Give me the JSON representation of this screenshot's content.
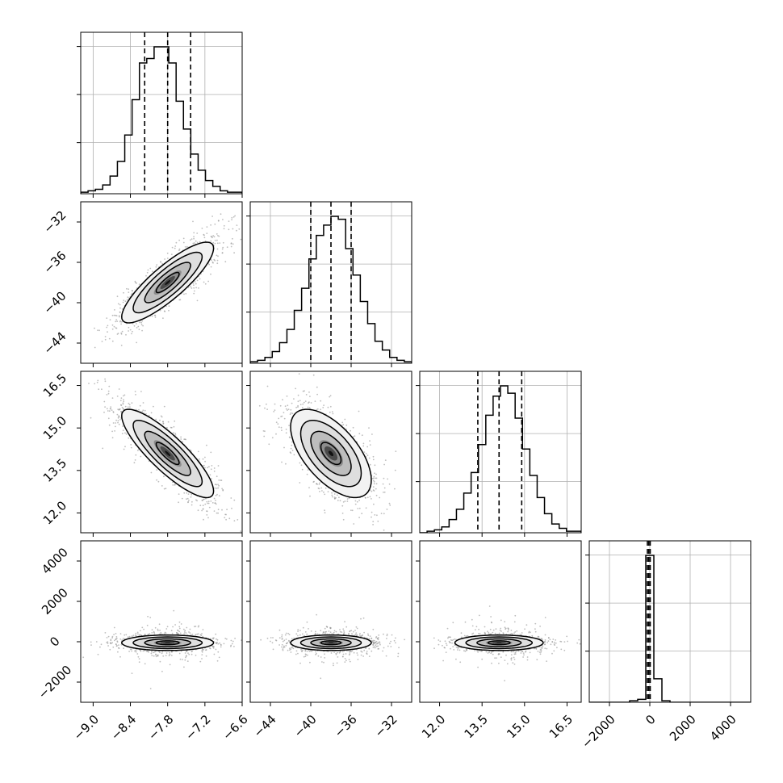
{
  "chart_data": {
    "type": "corner",
    "n_parameters": 4,
    "axes": [
      {
        "index": 0,
        "range": [
          -9.2,
          -6.6
        ],
        "ticks": [
          -9.0,
          -8.4,
          -7.8,
          -7.2,
          -6.6
        ],
        "tick_labels": [
          "−9.0",
          "−8.4",
          "−7.8",
          "−7.2",
          "−6.6"
        ],
        "quantiles": [
          -8.17,
          -7.8,
          -7.43
        ],
        "center": -7.8,
        "sigma": 0.37
      },
      {
        "index": 1,
        "range": [
          -46,
          -30
        ],
        "ticks": [
          -44,
          -40,
          -36,
          -32
        ],
        "tick_labels": [
          "−44",
          "−40",
          "−36",
          "−32"
        ],
        "quantiles": [
          -40.0,
          -38.0,
          -36.0
        ],
        "center": -38.0,
        "sigma": 2.0
      },
      {
        "index": 2,
        "range": [
          11.3,
          17.0
        ],
        "ticks": [
          12.0,
          13.5,
          15.0,
          16.5
        ],
        "tick_labels": [
          "12.0",
          "13.5",
          "15.0",
          "16.5"
        ],
        "quantiles": [
          13.35,
          14.1,
          14.9
        ],
        "center": 14.1,
        "sigma": 0.78
      },
      {
        "index": 3,
        "range": [
          -3000,
          5000
        ],
        "ticks": [
          -2000,
          0,
          2000,
          4000
        ],
        "tick_labels": [
          "−2000",
          "0",
          "2000",
          "4000"
        ],
        "quantiles": [
          -120,
          -50,
          20
        ],
        "center": -50,
        "sigma": 120
      }
    ],
    "histograms": [
      {
        "param": 0,
        "bins": [
          -9.2,
          -6.6
        ],
        "counts": [
          1,
          2,
          3,
          6,
          12,
          22,
          40,
          64,
          89,
          92,
          100,
          100,
          89,
          63,
          44,
          27,
          16,
          9,
          5,
          2,
          1,
          1
        ]
      },
      {
        "param": 1,
        "bins": [
          -46,
          -30
        ],
        "counts": [
          1,
          2,
          4,
          8,
          14,
          23,
          36,
          51,
          71,
          87,
          94,
          100,
          98,
          78,
          60,
          42,
          27,
          15,
          9,
          4,
          2,
          1
        ]
      },
      {
        "param": 2,
        "bins": [
          11.3,
          17.0
        ],
        "counts": [
          0,
          1,
          2,
          4,
          9,
          16,
          27,
          41,
          60,
          80,
          93,
          100,
          95,
          78,
          57,
          39,
          24,
          13,
          6,
          3,
          1,
          1
        ]
      },
      {
        "param": 3,
        "bins": [
          -3000,
          5000
        ],
        "counts": [
          0,
          0,
          0,
          0,
          0,
          1,
          2,
          100,
          16,
          1,
          0,
          0,
          0,
          0,
          0,
          0,
          0,
          0,
          0,
          0
        ]
      }
    ],
    "correlations": [
      {
        "pair": [
          1,
          0
        ],
        "rho": 0.85
      },
      {
        "pair": [
          2,
          0
        ],
        "rho": -0.85
      },
      {
        "pair": [
          2,
          1
        ],
        "rho": -0.6
      },
      {
        "pair": [
          3,
          0
        ],
        "rho": 0.0
      },
      {
        "pair": [
          3,
          1
        ],
        "rho": 0.0
      },
      {
        "pair": [
          3,
          2
        ],
        "rho": 0.0
      }
    ],
    "grid": true,
    "colors": {
      "line": "#000000",
      "grid": "#b0b0b0",
      "scatter": "#888888"
    }
  }
}
